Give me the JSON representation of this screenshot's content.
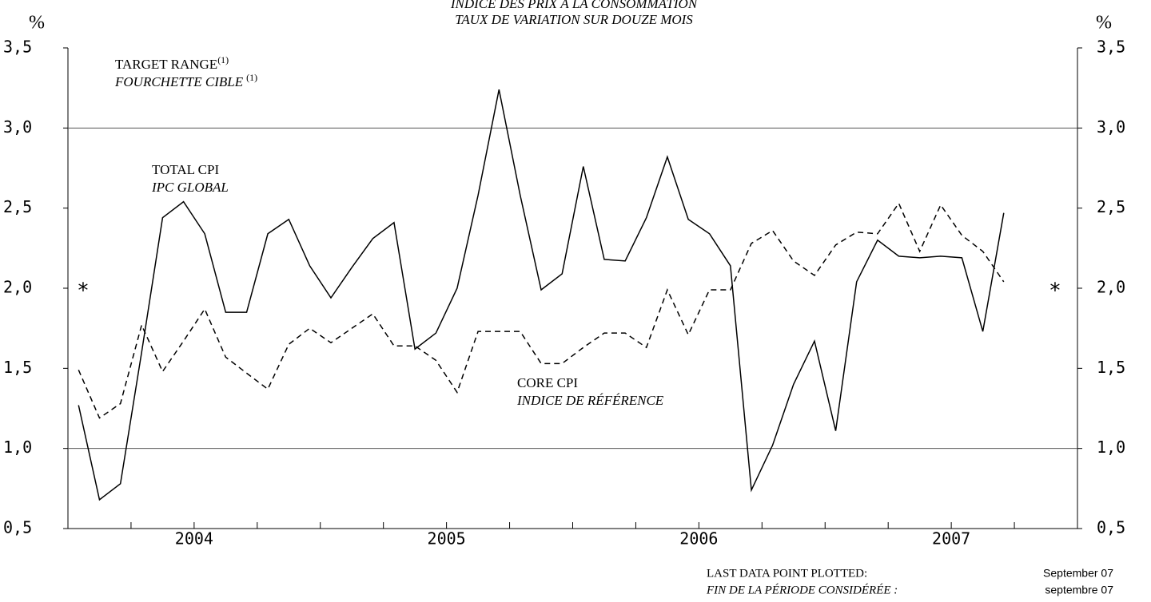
{
  "chart_data": {
    "type": "line",
    "title": "INDICE DES PRIX À LA CONSOMMATION",
    "subtitle": "TAUX DE VARIATION SUR DOUZE MOIS",
    "y_unit": "%",
    "y2_unit": "%",
    "x": [
      2004.042,
      2004.125,
      2004.208,
      2004.292,
      2004.375,
      2004.458,
      2004.542,
      2004.625,
      2004.708,
      2004.792,
      2004.875,
      2004.958,
      2005.042,
      2005.125,
      2005.208,
      2005.292,
      2005.375,
      2005.458,
      2005.542,
      2005.625,
      2005.708,
      2005.792,
      2005.875,
      2005.958,
      2006.042,
      2006.125,
      2006.208,
      2006.292,
      2006.375,
      2006.458,
      2006.542,
      2006.625,
      2006.708,
      2006.792,
      2006.875,
      2006.958,
      2007.042,
      2007.125,
      2007.208,
      2007.292,
      2007.375,
      2007.458,
      2007.542,
      2007.625,
      2007.708
    ],
    "series": [
      {
        "name": "TOTAL CPI",
        "name_fr": "IPC GLOBAL",
        "color": "#000000",
        "dash": false,
        "values": [
          1.27,
          0.68,
          0.78,
          1.6,
          2.44,
          2.54,
          2.34,
          1.85,
          1.85,
          2.34,
          2.43,
          2.14,
          1.94,
          2.13,
          2.31,
          2.41,
          1.62,
          1.72,
          2.0,
          2.58,
          3.24,
          2.58,
          1.99,
          2.09,
          2.76,
          2.18,
          2.17,
          2.44,
          2.82,
          2.43,
          2.34,
          2.14,
          0.74,
          1.02,
          1.4,
          1.67,
          1.11,
          2.04,
          2.3,
          2.2,
          2.19,
          2.2,
          2.19,
          1.73,
          2.47
        ]
      },
      {
        "name": "CORE CPI",
        "name_fr": "INDICE DE RÉFÉRENCE",
        "color": "#000000",
        "dash": true,
        "values": [
          1.49,
          1.19,
          1.28,
          1.77,
          1.48,
          1.67,
          1.87,
          1.57,
          1.47,
          1.37,
          1.65,
          1.75,
          1.66,
          1.75,
          1.84,
          1.64,
          1.64,
          1.55,
          1.35,
          1.73,
          1.73,
          1.73,
          1.53,
          1.53,
          1.63,
          1.72,
          1.72,
          1.63,
          1.99,
          1.71,
          1.99,
          1.99,
          2.28,
          2.36,
          2.17,
          2.08,
          2.27,
          2.35,
          2.34,
          2.53,
          2.23,
          2.52,
          2.33,
          2.23,
          2.04
        ]
      }
    ],
    "xlim": [
      2004,
      2008
    ],
    "xticks": [
      {
        "value": 2004.5,
        "label": "2004"
      },
      {
        "value": 2005.5,
        "label": "2005"
      },
      {
        "value": 2006.5,
        "label": "2006"
      },
      {
        "value": 2007.5,
        "label": "2007"
      }
    ],
    "minor_xticks": [
      2004,
      2004.25,
      2004.5,
      2004.75,
      2005,
      2005.25,
      2005.5,
      2005.75,
      2006,
      2006.25,
      2006.5,
      2006.75,
      2007,
      2007.25,
      2007.5,
      2007.75,
      2008
    ],
    "ylim": [
      0.5,
      3.5
    ],
    "yticks": [
      {
        "value": 0.5,
        "label": "0,5"
      },
      {
        "value": 1.0,
        "label": "1,0"
      },
      {
        "value": 1.5,
        "label": "1,5"
      },
      {
        "value": 2.0,
        "label": "2,0"
      },
      {
        "value": 2.5,
        "label": "2,5"
      },
      {
        "value": 3.0,
        "label": "3,0"
      },
      {
        "value": 3.5,
        "label": "3,5"
      }
    ],
    "y2lim": [
      0.5,
      3.5
    ],
    "y2ticks": [
      {
        "value": 0.5,
        "label": "0,5"
      },
      {
        "value": 1.0,
        "label": "1,0"
      },
      {
        "value": 1.5,
        "label": "1,5"
      },
      {
        "value": 2.0,
        "label": "2,0"
      },
      {
        "value": 2.5,
        "label": "2,5"
      },
      {
        "value": 3.0,
        "label": "3,0"
      },
      {
        "value": 3.5,
        "label": "3,5"
      }
    ],
    "target_range": {
      "label": "TARGET RANGE",
      "label_fr": "FOURCHETTE CIBLE",
      "note": "(1)",
      "values": [
        1.0,
        3.0
      ]
    },
    "marker": {
      "text": "*",
      "value": 2.0
    },
    "footer": {
      "label": "LAST DATA POINT PLOTTED:",
      "label_fr": "FIN DE LA PÉRIODE CONSIDÉRÉE :",
      "value": "September 07",
      "value_fr": "septembre 07"
    }
  }
}
